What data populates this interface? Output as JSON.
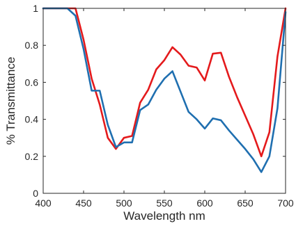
{
  "chart_data": {
    "type": "line",
    "xlabel": "Wavelength nm",
    "ylabel": "% Transmittance",
    "xlim": [
      400,
      700
    ],
    "ylim": [
      0,
      1
    ],
    "xticks": [
      400,
      450,
      500,
      550,
      600,
      650,
      700
    ],
    "yticks": [
      0,
      0.2,
      0.4,
      0.6,
      0.8,
      1
    ],
    "xtick_labels": [
      "400",
      "450",
      "500",
      "550",
      "600",
      "650",
      "700"
    ],
    "ytick_labels": [
      "0",
      "0.2",
      "0.4",
      "0.6",
      "0.8",
      "1"
    ],
    "grid": false,
    "series": [
      {
        "color": "#e41a1c",
        "x": [
          400,
          430,
          440,
          450,
          460,
          470,
          480,
          490,
          500,
          510,
          520,
          530,
          540,
          550,
          560,
          570,
          580,
          590,
          600,
          610,
          620,
          630,
          640,
          650,
          660,
          670,
          680,
          690,
          700
        ],
        "y": [
          1.0,
          1.0,
          1.0,
          0.83,
          0.62,
          0.48,
          0.3,
          0.24,
          0.3,
          0.31,
          0.49,
          0.56,
          0.67,
          0.72,
          0.79,
          0.75,
          0.69,
          0.68,
          0.61,
          0.755,
          0.76,
          0.63,
          0.52,
          0.42,
          0.32,
          0.2,
          0.33,
          0.74,
          1.0
        ]
      },
      {
        "color": "#1f6fb0",
        "x": [
          400,
          430,
          440,
          450,
          460,
          470,
          480,
          490,
          500,
          510,
          520,
          530,
          540,
          550,
          560,
          570,
          580,
          590,
          600,
          610,
          620,
          630,
          640,
          650,
          660,
          670,
          680,
          690,
          700
        ],
        "y": [
          1.0,
          1.0,
          0.96,
          0.78,
          0.555,
          0.555,
          0.37,
          0.25,
          0.275,
          0.275,
          0.45,
          0.48,
          0.56,
          0.62,
          0.66,
          0.55,
          0.44,
          0.4,
          0.35,
          0.405,
          0.395,
          0.34,
          0.29,
          0.24,
          0.185,
          0.115,
          0.2,
          0.46,
          0.98
        ]
      }
    ]
  }
}
